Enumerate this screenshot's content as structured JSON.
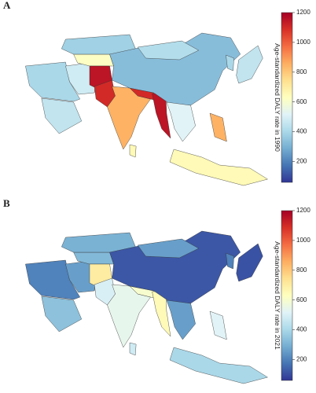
{
  "panels": [
    {
      "label": "A",
      "colorbar_title": "Age-standardized DALY rate in 1990",
      "clim": [
        60,
        1200
      ],
      "ticks": [
        200,
        400,
        600,
        800,
        1000,
        1200
      ],
      "values": [
        400,
        480,
        620,
        380,
        1150,
        1100,
        850,
        1100,
        1150,
        330,
        420,
        400,
        450,
        520,
        650,
        850,
        650,
        450
      ]
    },
    {
      "label": "B",
      "colorbar_title": "Age-standardized DALY rate in 2021",
      "clim": [
        60,
        1200
      ],
      "ticks": [
        200,
        400,
        600,
        800,
        1000,
        1200
      ],
      "values": [
        200,
        260,
        320,
        300,
        700,
        500,
        540,
        600,
        650,
        120,
        260,
        200,
        110,
        260,
        400,
        520,
        480,
        340
      ]
    }
  ],
  "colormap": [
    "#313695",
    "#4575b4",
    "#74add1",
    "#abd9e9",
    "#e0f3f8",
    "#ffffbf",
    "#fee090",
    "#fdae61",
    "#f46d43",
    "#d73027",
    "#a50026"
  ]
}
